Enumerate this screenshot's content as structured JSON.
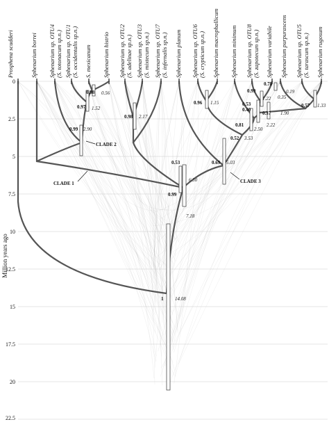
{
  "taxa": [
    {
      "name": "Prosphena scudderi",
      "sub": ""
    },
    {
      "name": "Sphenarium borrei",
      "sub": ""
    },
    {
      "name": "Sphenarium sp. OTU4",
      "sub": "(S. totonacum sp.n.)"
    },
    {
      "name": "Sphenarium sp. OTU1",
      "sub": "(S. occidentalis sp.n.)"
    },
    {
      "name": "S. mexicanum",
      "sub": ""
    },
    {
      "name": "Sphenarium histrio",
      "sub": ""
    },
    {
      "name": "Sphenarium sp. OTU2",
      "sub": "(S. adelinae sp.n.)"
    },
    {
      "name": "Sphenarium sp. OTU3",
      "sub": "(S. mixtecum sp.n.)"
    },
    {
      "name": "Sphenarium sp. OTU7",
      "sub": "(S. infernalis sp.n.)"
    },
    {
      "name": "Sphenarium planum",
      "sub": ""
    },
    {
      "name": "Sphenarium sp. OTU6",
      "sub": "(S. crypticum sp.n.)"
    },
    {
      "name": "Sphenarium macrophallicum",
      "sub": ""
    },
    {
      "name": "Sphenarium minimum",
      "sub": ""
    },
    {
      "name": "Sphenarium sp. OTU8",
      "sub": "(S. zapotecum sp.n.)"
    },
    {
      "name": "Sphenarium variabile",
      "sub": ""
    },
    {
      "name": "Sphenarium purpurascens",
      "sub": ""
    },
    {
      "name": "Sphenarium sp. OTU5",
      "sub": "(S. tarascum sp.n.)"
    },
    {
      "name": "Sphenarium rugosum",
      "sub": ""
    }
  ],
  "axis": {
    "label": "Million years ago",
    "ticks": [
      "0",
      "2.5",
      "5",
      "7.5",
      "10",
      "12.5",
      "15",
      "17.5",
      "20",
      "22.5"
    ],
    "range": [
      0,
      22.5
    ]
  },
  "nodes": [
    {
      "support": "0.98",
      "age": "0.56"
    },
    {
      "support": "0.97",
      "age": "1.52"
    },
    {
      "support": "0.99",
      "age": "2.90"
    },
    {
      "support": "0.98",
      "age": "2.17"
    },
    {
      "support": "0.53",
      "age": "6.30"
    },
    {
      "support": "0.99",
      "age": "7.18"
    },
    {
      "support": "1",
      "age": "14.08"
    },
    {
      "support": "0.96",
      "age": "1.15"
    },
    {
      "support": "0.81",
      "age": "3.53"
    },
    {
      "support": "0.52",
      "age": "3.53"
    },
    {
      "support": "0.69",
      "age": "5.03"
    },
    {
      "support": "0.99",
      "age": "1.22"
    },
    {
      "support": "0.53",
      "age": "2.50"
    },
    {
      "support": "0.40",
      "age": "2.22"
    },
    {
      "support": "0.37",
      "age": "1.90"
    },
    {
      "support": "0.78",
      "age": "0.19"
    },
    {
      "support": "",
      "age": "0.35"
    },
    {
      "support": "0.57",
      "age": "1.33"
    }
  ],
  "clades": [
    "CLADE 1",
    "CLADE 2",
    "CLADE 3"
  ]
}
